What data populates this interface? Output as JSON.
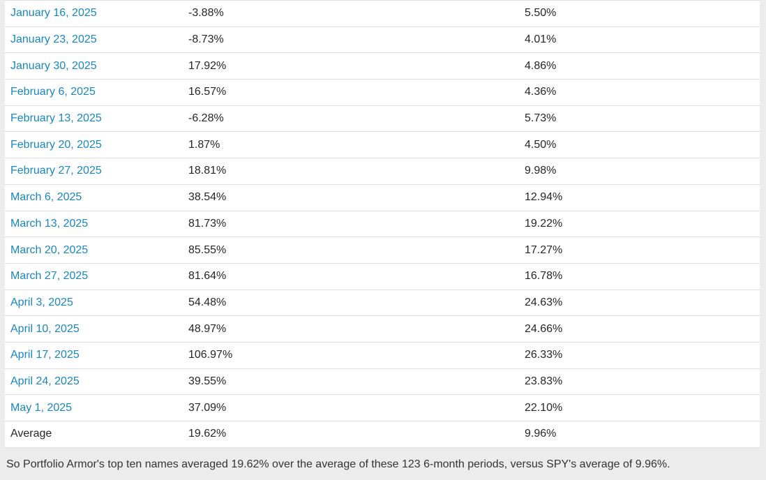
{
  "page": {
    "background_color": "#ececec",
    "table_background_color": "#ffffff",
    "row_border_color": "#dddde2",
    "link_color": "#1787c2",
    "text_color": "#262626"
  },
  "table": {
    "rows": [
      {
        "date": "January 16, 2025",
        "top_ten": "-3.88%",
        "spy": "5.50%",
        "is_link": true
      },
      {
        "date": "January 23, 2025",
        "top_ten": "-8.73%",
        "spy": "4.01%",
        "is_link": true
      },
      {
        "date": "January 30, 2025",
        "top_ten": "17.92%",
        "spy": "4.86%",
        "is_link": true
      },
      {
        "date": "February 6, 2025",
        "top_ten": "16.57%",
        "spy": "4.36%",
        "is_link": true
      },
      {
        "date": "February 13, 2025",
        "top_ten": "-6.28%",
        "spy": "5.73%",
        "is_link": true
      },
      {
        "date": "February 20, 2025",
        "top_ten": "1.87%",
        "spy": "4.50%",
        "is_link": true
      },
      {
        "date": "February 27, 2025",
        "top_ten": "18.81%",
        "spy": "9.98%",
        "is_link": true
      },
      {
        "date": "March 6, 2025",
        "top_ten": "38.54%",
        "spy": "12.94%",
        "is_link": true
      },
      {
        "date": "March 13, 2025",
        "top_ten": "81.73%",
        "spy": "19.22%",
        "is_link": true
      },
      {
        "date": "March 20, 2025",
        "top_ten": "85.55%",
        "spy": "17.27%",
        "is_link": true
      },
      {
        "date": "March 27, 2025",
        "top_ten": "81.64%",
        "spy": "16.78%",
        "is_link": true
      },
      {
        "date": "April 3, 2025",
        "top_ten": "54.48%",
        "spy": "24.63%",
        "is_link": true
      },
      {
        "date": "April 10, 2025",
        "top_ten": "48.97%",
        "spy": "24.66%",
        "is_link": true
      },
      {
        "date": "April 17, 2025",
        "top_ten": "106.97%",
        "spy": "26.33%",
        "is_link": true
      },
      {
        "date": "April 24, 2025",
        "top_ten": "39.55%",
        "spy": "23.83%",
        "is_link": true
      },
      {
        "date": "May 1, 2025",
        "top_ten": "37.09%",
        "spy": "22.10%",
        "is_link": true
      },
      {
        "date": "Average",
        "top_ten": "19.62%",
        "spy": "9.96%",
        "is_link": false
      }
    ]
  },
  "footer": {
    "text": "So Portfolio Armor's top ten names averaged 19.62% over the average of these 123 6-month periods, versus SPY's average of 9.96%."
  }
}
